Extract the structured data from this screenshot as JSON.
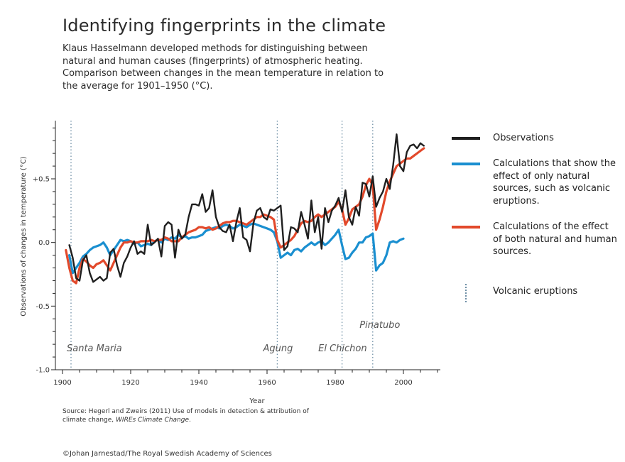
{
  "title": "Identifying fingerprints in the climate",
  "subtitle": "Klaus Hasselmann developed methods for distinguishing between natural and human causes (fingerprints) of atmospheric heating. Comparison between changes in the mean temperature in relation to the average for 1901–1950 (°C).",
  "source_text": "Source: Hegerl and Zweirs (2011) Use of models in detection & attribution of climate change, ",
  "source_journal": "WIREs Climate Change",
  "source_end": ".",
  "credit": "©Johan Jarnestad/The Royal Swedish Academy of Sciences",
  "legend": {
    "observations": "Observations",
    "natural": "Calculations that show the effect of only natural sources, such as volcanic eruptions.",
    "combined": "Calculations of the effect of both natural and human sources.",
    "volcanic": "Volcanic eruptions"
  },
  "chart_data": {
    "type": "line",
    "xlabel": "Year",
    "ylabel": "Observations of changes in temperature (°C)",
    "xlim": [
      1900,
      2010
    ],
    "ylim": [
      -1.0,
      0.9
    ],
    "x_ticks": [
      1900,
      1920,
      1940,
      1960,
      1980,
      2000
    ],
    "y_ticks": [
      {
        "value": 0.5,
        "label": "+0.5"
      },
      {
        "value": 0.0,
        "label": "0.0"
      },
      {
        "value": -0.5,
        "label": "-0.5"
      },
      {
        "value": -1.0,
        "label": "-1.0"
      }
    ],
    "colors": {
      "observations": "#1f1f1f",
      "natural": "#1a8fd0",
      "combined": "#e2492b",
      "volcanic": "#6f8fa6"
    },
    "eruptions": [
      {
        "name": "Santa Maria",
        "year": 1902.5
      },
      {
        "name": "Agung",
        "year": 1963
      },
      {
        "name": "El Chichon",
        "year": 1982
      },
      {
        "name": "Pinatubo",
        "year": 1991
      }
    ],
    "series": [
      {
        "key": "observations",
        "name": "Observations",
        "x": [
          1902,
          1903,
          1904,
          1905,
          1906,
          1907,
          1908,
          1909,
          1910,
          1911,
          1912,
          1913,
          1914,
          1915,
          1916,
          1917,
          1918,
          1919,
          1920,
          1921,
          1922,
          1923,
          1924,
          1925,
          1926,
          1927,
          1928,
          1929,
          1930,
          1931,
          1932,
          1933,
          1934,
          1935,
          1936,
          1937,
          1938,
          1939,
          1940,
          1941,
          1942,
          1943,
          1944,
          1945,
          1946,
          1947,
          1948,
          1949,
          1950,
          1951,
          1952,
          1953,
          1954,
          1955,
          1956,
          1957,
          1958,
          1959,
          1960,
          1961,
          1962,
          1963,
          1964,
          1965,
          1966,
          1967,
          1968,
          1969,
          1970,
          1971,
          1972,
          1973,
          1974,
          1975,
          1976,
          1977,
          1978,
          1979,
          1980,
          1981,
          1982,
          1983,
          1984,
          1985,
          1986,
          1987,
          1988,
          1989,
          1990,
          1991,
          1992,
          1993,
          1994,
          1995,
          1996,
          1997,
          1998,
          1999,
          2000,
          2001,
          2002,
          2003,
          2004,
          2005,
          2006
        ],
        "values": [
          -0.02,
          -0.12,
          -0.28,
          -0.3,
          -0.14,
          -0.1,
          -0.24,
          -0.31,
          -0.29,
          -0.27,
          -0.3,
          -0.28,
          -0.08,
          -0.05,
          -0.18,
          -0.27,
          -0.16,
          -0.11,
          -0.04,
          0.01,
          -0.09,
          -0.07,
          -0.09,
          0.14,
          -0.02,
          0.0,
          0.03,
          -0.11,
          0.13,
          0.16,
          0.14,
          -0.12,
          0.1,
          0.03,
          0.06,
          0.2,
          0.3,
          0.3,
          0.29,
          0.38,
          0.24,
          0.27,
          0.41,
          0.2,
          0.12,
          0.09,
          0.08,
          0.14,
          0.01,
          0.16,
          0.27,
          0.04,
          0.02,
          -0.07,
          0.15,
          0.25,
          0.27,
          0.2,
          0.18,
          0.26,
          0.25,
          0.27,
          0.29,
          -0.06,
          -0.03,
          0.12,
          0.11,
          0.08,
          0.24,
          0.14,
          0.03,
          0.33,
          0.08,
          0.2,
          -0.05,
          0.27,
          0.16,
          0.25,
          0.29,
          0.35,
          0.24,
          0.41,
          0.2,
          0.14,
          0.28,
          0.21,
          0.47,
          0.46,
          0.36,
          0.52,
          0.28,
          0.35,
          0.4,
          0.5,
          0.42,
          0.61,
          0.85,
          0.6,
          0.56,
          0.71,
          0.76,
          0.77,
          0.74,
          0.78,
          0.76
        ]
      },
      {
        "key": "natural",
        "name": "Calculations that show the effect of only natural sources, such as volcanic eruptions.",
        "x": [
          1902,
          1903,
          1904,
          1905,
          1906,
          1907,
          1908,
          1909,
          1910,
          1911,
          1912,
          1913,
          1914,
          1915,
          1916,
          1917,
          1918,
          1919,
          1920,
          1921,
          1922,
          1923,
          1924,
          1925,
          1926,
          1927,
          1928,
          1929,
          1930,
          1931,
          1932,
          1933,
          1934,
          1935,
          1936,
          1937,
          1938,
          1939,
          1940,
          1941,
          1942,
          1943,
          1944,
          1945,
          1946,
          1947,
          1948,
          1949,
          1950,
          1951,
          1952,
          1953,
          1954,
          1955,
          1956,
          1957,
          1958,
          1959,
          1960,
          1961,
          1962,
          1963,
          1964,
          1965,
          1966,
          1967,
          1968,
          1969,
          1970,
          1971,
          1972,
          1973,
          1974,
          1975,
          1976,
          1977,
          1978,
          1979,
          1980,
          1981,
          1982,
          1983,
          1984,
          1985,
          1986,
          1987,
          1988,
          1989,
          1990,
          1991,
          1992,
          1993,
          1994,
          1995,
          1996,
          1997,
          1998,
          1999,
          2000
        ],
        "values": [
          -0.1,
          -0.24,
          -0.2,
          -0.16,
          -0.11,
          -0.09,
          -0.06,
          -0.04,
          -0.03,
          -0.02,
          0.0,
          -0.04,
          -0.1,
          -0.06,
          -0.02,
          0.02,
          0.01,
          0.02,
          0.01,
          -0.01,
          0.0,
          -0.03,
          -0.02,
          -0.01,
          -0.02,
          0.01,
          0.02,
          0.0,
          0.03,
          0.02,
          0.04,
          0.03,
          0.06,
          0.04,
          0.05,
          0.03,
          0.04,
          0.04,
          0.05,
          0.06,
          0.09,
          0.1,
          0.11,
          0.12,
          0.11,
          0.13,
          0.14,
          0.13,
          0.11,
          0.12,
          0.14,
          0.13,
          0.12,
          0.14,
          0.15,
          0.14,
          0.13,
          0.12,
          0.11,
          0.1,
          0.08,
          0.01,
          -0.12,
          -0.1,
          -0.08,
          -0.1,
          -0.06,
          -0.05,
          -0.07,
          -0.04,
          -0.02,
          0.0,
          -0.02,
          0.0,
          0.01,
          -0.02,
          0.0,
          0.03,
          0.06,
          0.1,
          -0.02,
          -0.13,
          -0.12,
          -0.08,
          -0.05,
          0.0,
          0.0,
          0.04,
          0.05,
          0.07,
          -0.22,
          -0.18,
          -0.16,
          -0.1,
          0.0,
          0.01,
          0.0,
          0.02,
          0.03
        ]
      },
      {
        "key": "combined",
        "name": "Calculations of the effect of both natural and human sources.",
        "x": [
          1901,
          1902,
          1903,
          1904,
          1905,
          1906,
          1907,
          1908,
          1909,
          1910,
          1911,
          1912,
          1913,
          1914,
          1915,
          1916,
          1917,
          1918,
          1919,
          1920,
          1921,
          1922,
          1923,
          1924,
          1925,
          1926,
          1927,
          1928,
          1929,
          1930,
          1931,
          1932,
          1933,
          1934,
          1935,
          1936,
          1937,
          1938,
          1939,
          1940,
          1941,
          1942,
          1943,
          1944,
          1945,
          1946,
          1947,
          1948,
          1949,
          1950,
          1951,
          1952,
          1953,
          1954,
          1955,
          1956,
          1957,
          1958,
          1959,
          1960,
          1961,
          1962,
          1963,
          1964,
          1965,
          1966,
          1967,
          1968,
          1969,
          1970,
          1971,
          1972,
          1973,
          1974,
          1975,
          1976,
          1977,
          1978,
          1979,
          1980,
          1981,
          1982,
          1983,
          1984,
          1985,
          1986,
          1987,
          1988,
          1989,
          1990,
          1991,
          1992,
          1993,
          1994,
          1995,
          1996,
          1997,
          1998,
          1999,
          2000,
          2001,
          2002,
          2003,
          2004,
          2005,
          2006
        ],
        "values": [
          -0.06,
          -0.2,
          -0.3,
          -0.32,
          -0.2,
          -0.13,
          -0.15,
          -0.18,
          -0.2,
          -0.17,
          -0.16,
          -0.14,
          -0.18,
          -0.22,
          -0.16,
          -0.1,
          -0.04,
          0.0,
          0.0,
          0.01,
          0.0,
          0.0,
          0.01,
          0.01,
          0.01,
          0.02,
          0.01,
          0.02,
          0.02,
          0.04,
          0.03,
          0.01,
          0.01,
          0.01,
          0.04,
          0.06,
          0.08,
          0.09,
          0.1,
          0.12,
          0.12,
          0.11,
          0.12,
          0.1,
          0.11,
          0.13,
          0.15,
          0.16,
          0.16,
          0.17,
          0.17,
          0.16,
          0.15,
          0.14,
          0.16,
          0.18,
          0.2,
          0.2,
          0.22,
          0.21,
          0.2,
          0.18,
          0.02,
          -0.04,
          -0.02,
          0.0,
          0.02,
          0.05,
          0.1,
          0.15,
          0.17,
          0.16,
          0.17,
          0.2,
          0.22,
          0.2,
          0.22,
          0.24,
          0.26,
          0.28,
          0.32,
          0.26,
          0.14,
          0.19,
          0.26,
          0.28,
          0.3,
          0.36,
          0.45,
          0.5,
          0.45,
          0.1,
          0.18,
          0.28,
          0.4,
          0.48,
          0.54,
          0.6,
          0.62,
          0.64,
          0.66,
          0.66,
          0.68,
          0.7,
          0.72,
          0.74
        ]
      }
    ]
  }
}
